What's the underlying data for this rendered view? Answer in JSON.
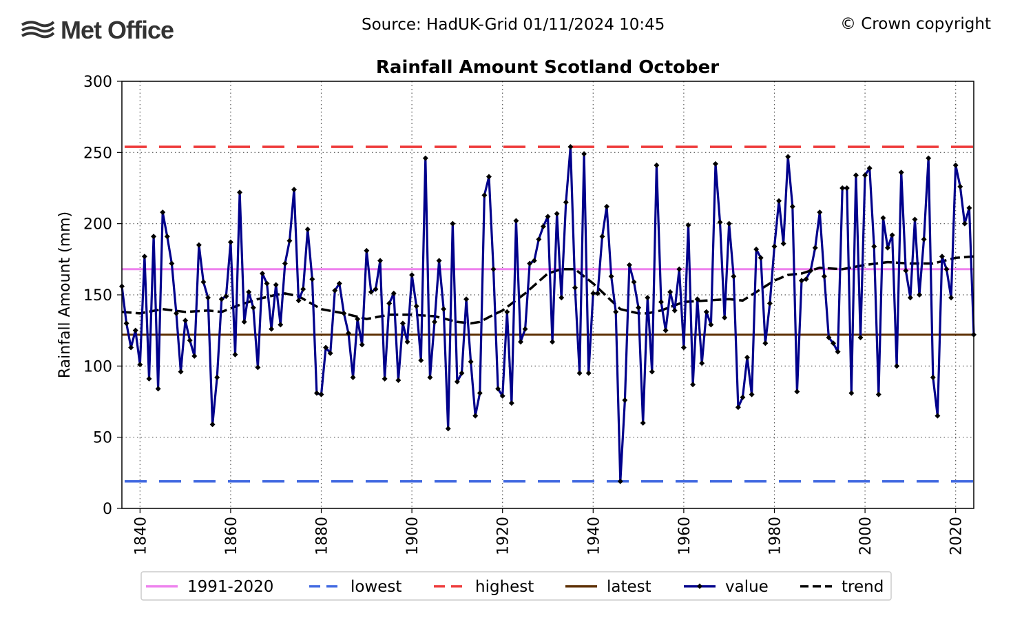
{
  "header": {
    "logo_text": "Met Office",
    "source_text": "Source: HadUK-Grid 01/11/2024 10:45",
    "copyright_text": "© Crown copyright"
  },
  "chart_data": {
    "type": "line",
    "title": "Rainfall Amount Scotland October",
    "xlabel": "",
    "ylabel": "Rainfall Amount (mm)",
    "xlim": [
      1836,
      2024
    ],
    "ylim": [
      0,
      300
    ],
    "x_ticks": [
      1840,
      1860,
      1880,
      1900,
      1920,
      1940,
      1960,
      1980,
      2000,
      2020
    ],
    "y_ticks": [
      0,
      50,
      100,
      150,
      200,
      250,
      300
    ],
    "grid": true,
    "legend_position": "bottom",
    "reference_lines": {
      "baseline_1991_2020": 168,
      "lowest": 19,
      "highest": 254,
      "latest": 122
    },
    "colors": {
      "baseline": "#ee82ee",
      "lowest": "#4169e1",
      "highest": "#ee3b3b",
      "latest": "#5c2e00",
      "value": "#00008b",
      "trend": "#000000"
    },
    "legend": [
      {
        "label": "1991-2020",
        "key": "baseline"
      },
      {
        "label": "lowest",
        "key": "lowest"
      },
      {
        "label": "highest",
        "key": "highest"
      },
      {
        "label": "latest",
        "key": "latest"
      },
      {
        "label": "value",
        "key": "value"
      },
      {
        "label": "trend",
        "key": "trend"
      }
    ],
    "series": [
      {
        "name": "value",
        "x": [
          1836,
          1837,
          1838,
          1839,
          1840,
          1841,
          1842,
          1843,
          1844,
          1845,
          1846,
          1847,
          1848,
          1849,
          1850,
          1851,
          1852,
          1853,
          1854,
          1855,
          1856,
          1857,
          1858,
          1859,
          1860,
          1861,
          1862,
          1863,
          1864,
          1865,
          1866,
          1867,
          1868,
          1869,
          1870,
          1871,
          1872,
          1873,
          1874,
          1875,
          1876,
          1877,
          1878,
          1879,
          1880,
          1881,
          1882,
          1883,
          1884,
          1885,
          1886,
          1887,
          1888,
          1889,
          1890,
          1891,
          1892,
          1893,
          1894,
          1895,
          1896,
          1897,
          1898,
          1899,
          1900,
          1901,
          1902,
          1903,
          1904,
          1905,
          1906,
          1907,
          1908,
          1909,
          1910,
          1911,
          1912,
          1913,
          1914,
          1915,
          1916,
          1917,
          1918,
          1919,
          1920,
          1921,
          1922,
          1923,
          1924,
          1925,
          1926,
          1927,
          1928,
          1929,
          1930,
          1931,
          1932,
          1933,
          1934,
          1935,
          1936,
          1937,
          1938,
          1939,
          1940,
          1941,
          1942,
          1943,
          1944,
          1945,
          1946,
          1947,
          1948,
          1949,
          1950,
          1951,
          1952,
          1953,
          1954,
          1955,
          1956,
          1957,
          1958,
          1959,
          1960,
          1961,
          1962,
          1963,
          1964,
          1965,
          1966,
          1967,
          1968,
          1969,
          1970,
          1971,
          1972,
          1973,
          1974,
          1975,
          1976,
          1977,
          1978,
          1979,
          1980,
          1981,
          1982,
          1983,
          1984,
          1985,
          1986,
          1987,
          1988,
          1989,
          1990,
          1991,
          1992,
          1993,
          1994,
          1995,
          1996,
          1997,
          1998,
          1999,
          2000,
          2001,
          2002,
          2003,
          2004,
          2005,
          2006,
          2007,
          2008,
          2009,
          2010,
          2011,
          2012,
          2013,
          2014,
          2015,
          2016,
          2017,
          2018,
          2019,
          2020,
          2021,
          2022,
          2023,
          2024
        ],
        "values": [
          156,
          130,
          113,
          125,
          101,
          177,
          91,
          191,
          84,
          208,
          191,
          172,
          137,
          96,
          132,
          118,
          107,
          185,
          159,
          148,
          59,
          92,
          147,
          149,
          187,
          108,
          222,
          131,
          152,
          141,
          99,
          165,
          158,
          126,
          157,
          129,
          172,
          188,
          224,
          146,
          154,
          196,
          161,
          81,
          80,
          113,
          109,
          153,
          158,
          137,
          123,
          92,
          133,
          115,
          181,
          152,
          154,
          174,
          91,
          144,
          151,
          90,
          130,
          117,
          164,
          142,
          104,
          246,
          92,
          131,
          174,
          140,
          56,
          200,
          89,
          95,
          147,
          103,
          65,
          81,
          220,
          233,
          168,
          84,
          79,
          138,
          74,
          202,
          117,
          126,
          172,
          174,
          189,
          198,
          205,
          117,
          207,
          148,
          215,
          254,
          155,
          95,
          249,
          95,
          151,
          151,
          191,
          212,
          163,
          138,
          19,
          76,
          171,
          159,
          141,
          60,
          148,
          96,
          241,
          145,
          125,
          152,
          139,
          168,
          113,
          199,
          87,
          147,
          102,
          138,
          129,
          242,
          201,
          134,
          200,
          163,
          71,
          78,
          106,
          80,
          182,
          176,
          116,
          144,
          184,
          216,
          186,
          247,
          212,
          82,
          160,
          161,
          167,
          183,
          208,
          163,
          120,
          116,
          110,
          225,
          225,
          81,
          234,
          120,
          234,
          239,
          184,
          80,
          204,
          183,
          192,
          100,
          236,
          167,
          148,
          203,
          150,
          189,
          246,
          92,
          65,
          177,
          168,
          148,
          241,
          226,
          200,
          211,
          122
        ]
      },
      {
        "name": "trend",
        "x": [
          1836,
          1840,
          1845,
          1850,
          1855,
          1858,
          1862,
          1866,
          1870,
          1872,
          1875,
          1880,
          1885,
          1890,
          1895,
          1900,
          1905,
          1910,
          1913,
          1915,
          1918,
          1920,
          1925,
          1930,
          1933,
          1936,
          1940,
          1944,
          1946,
          1950,
          1952,
          1955,
          1960,
          1965,
          1970,
          1973,
          1975,
          1980,
          1983,
          1986,
          1990,
          1995,
          2000,
          2005,
          2010,
          2015,
          2020,
          2024
        ],
        "values": [
          138,
          137,
          140,
          138,
          139,
          138,
          143,
          147,
          150,
          151,
          149,
          140,
          137,
          133,
          136,
          136,
          135,
          131,
          130,
          131,
          136,
          139,
          151,
          165,
          168,
          168,
          158,
          146,
          140,
          137,
          137,
          139,
          145,
          146,
          147,
          146,
          150,
          160,
          164,
          165,
          169,
          168,
          171,
          173,
          172,
          172,
          176,
          177
        ]
      }
    ]
  }
}
